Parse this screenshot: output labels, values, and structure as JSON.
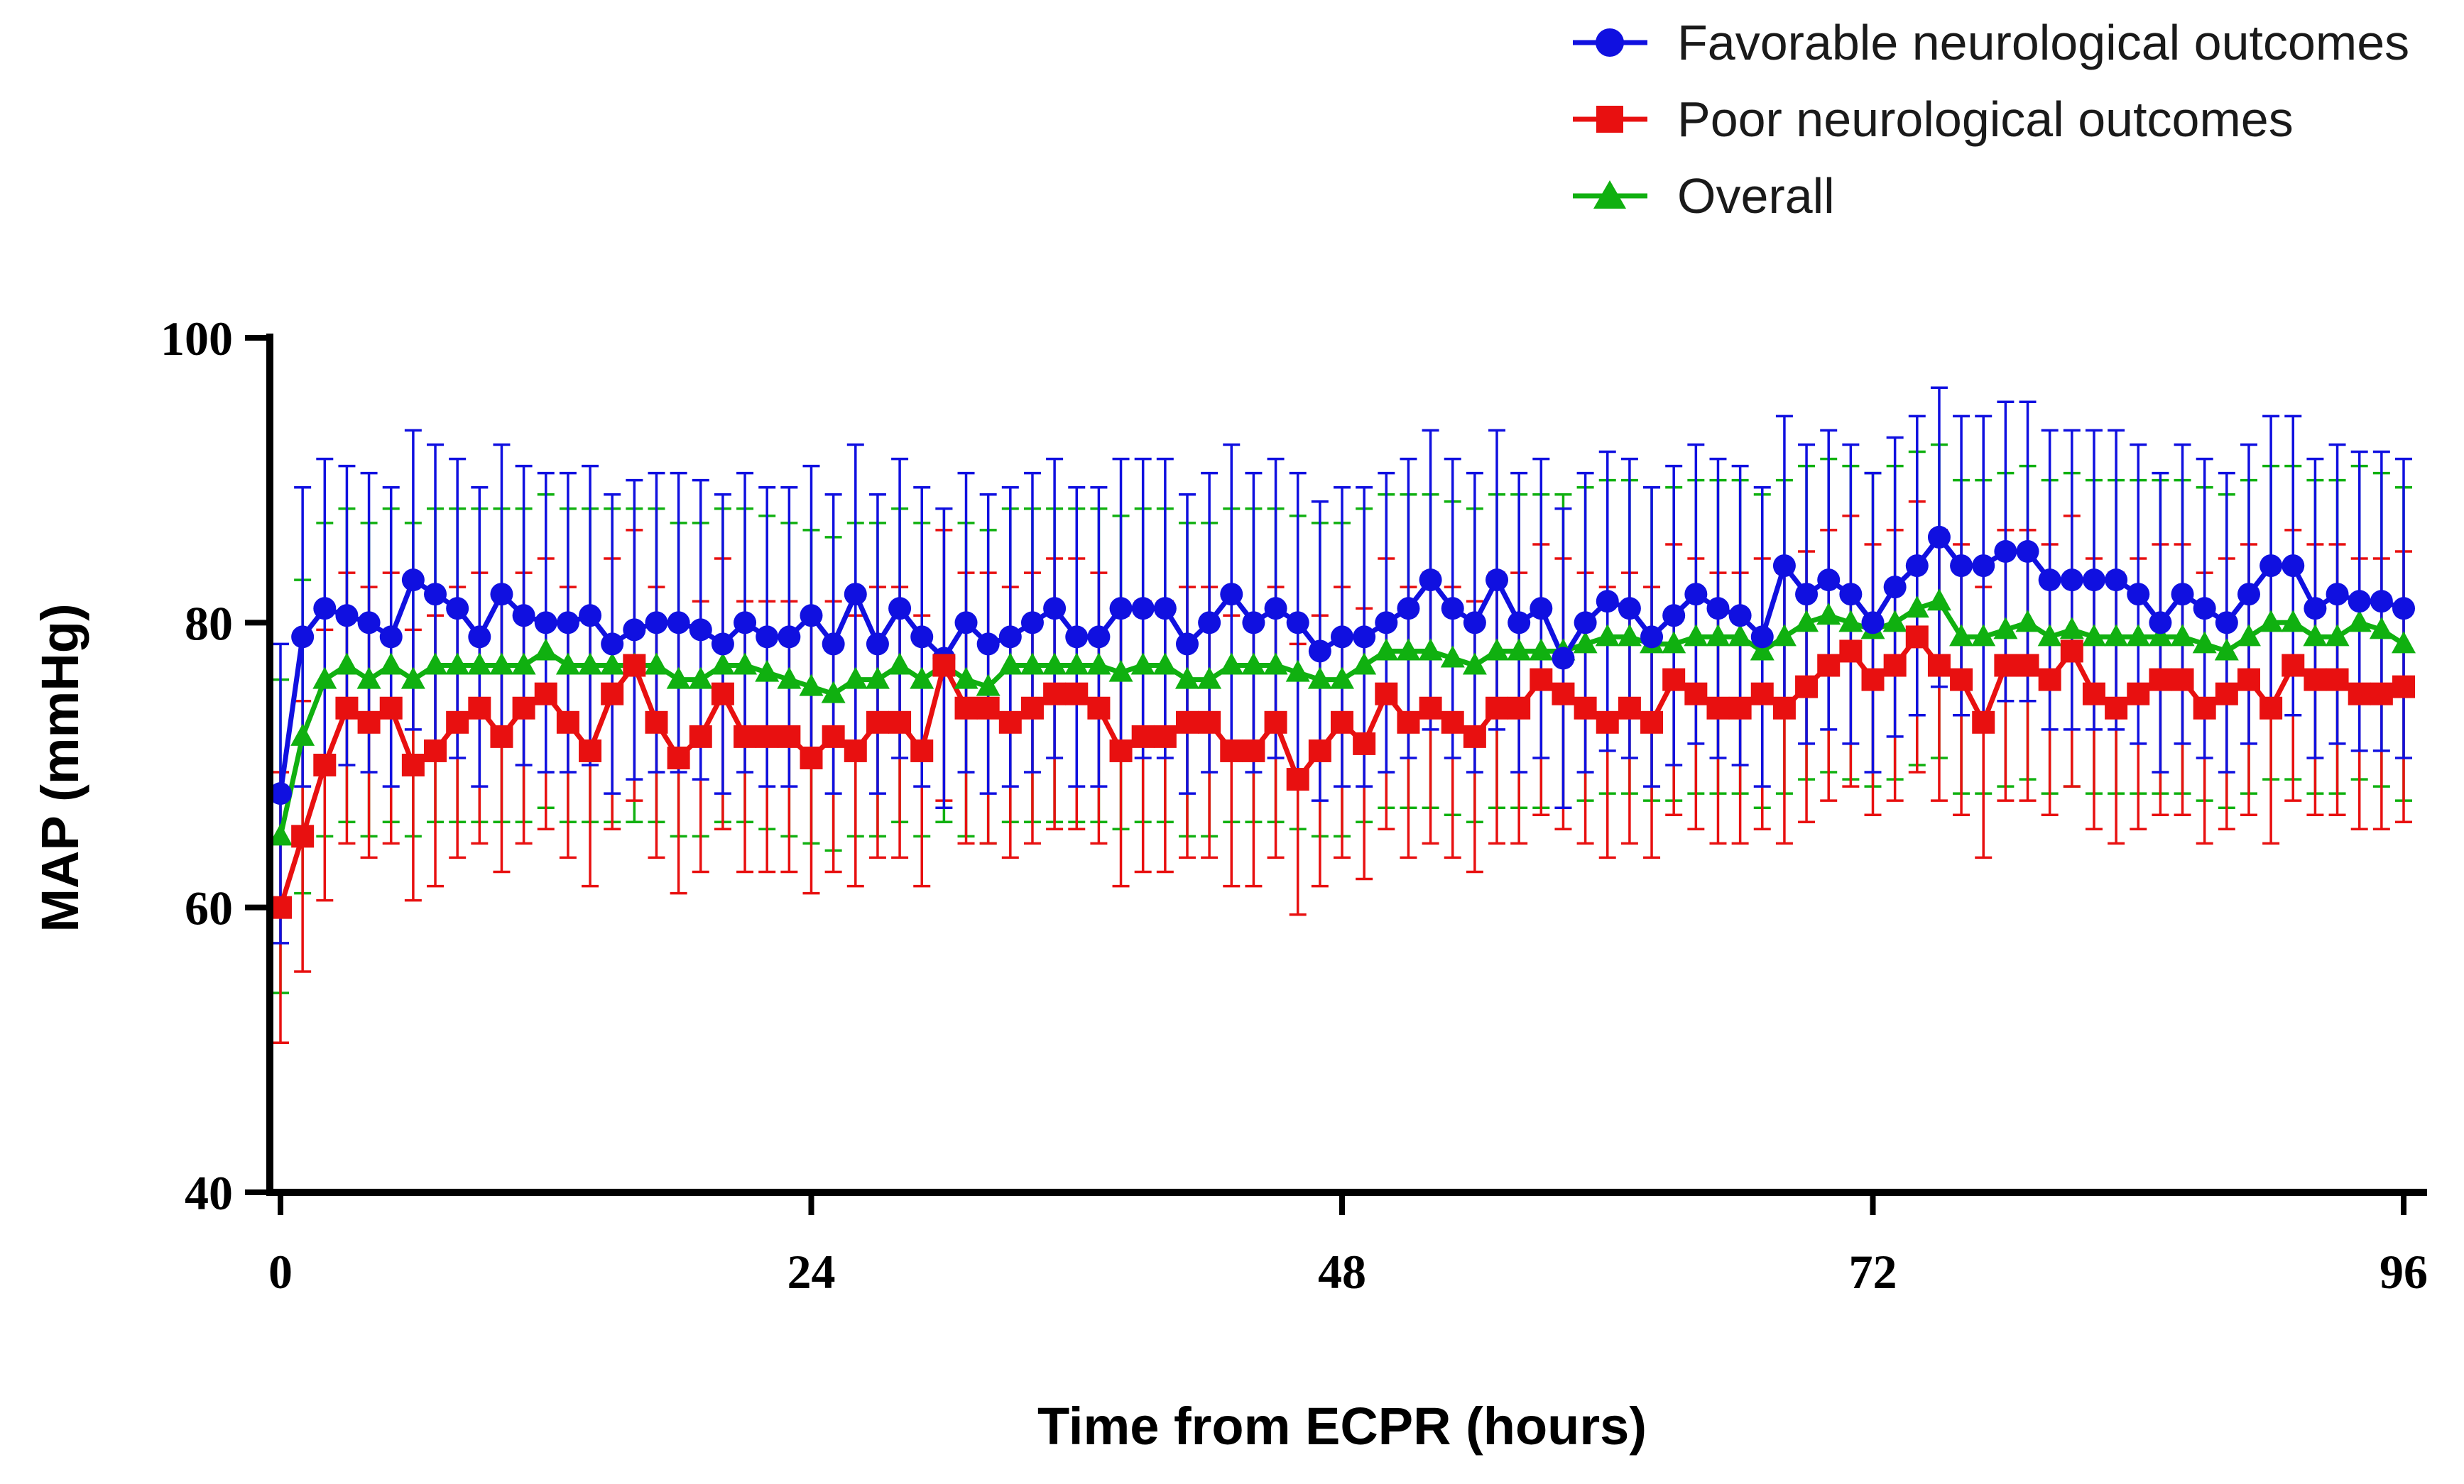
{
  "chart_data": {
    "type": "line",
    "title": "",
    "xlabel": "Time from ECPR (hours)",
    "ylabel": "MAP (mmHg)",
    "xlim": [
      0,
      96
    ],
    "ylim": [
      40,
      100
    ],
    "xticks": [
      0,
      24,
      48,
      72,
      96
    ],
    "yticks": [
      40,
      60,
      80,
      100
    ],
    "xtick_labels": [
      "0",
      "24",
      "48",
      "72",
      "96"
    ],
    "ytick_labels": [
      "40",
      "60",
      "80",
      "100"
    ],
    "legend_position": "top-right",
    "series": [
      {
        "name": "Favorable neurological outcomes",
        "color": "#1010e0",
        "marker": "circle",
        "error_sd": 10.5,
        "x": [
          0,
          1,
          2,
          3,
          4,
          5,
          6,
          7,
          8,
          9,
          10,
          11,
          12,
          13,
          14,
          15,
          16,
          17,
          18,
          19,
          20,
          21,
          22,
          23,
          24,
          25,
          26,
          27,
          28,
          29,
          30,
          31,
          32,
          33,
          34,
          35,
          36,
          37,
          38,
          39,
          40,
          41,
          42,
          43,
          44,
          45,
          46,
          47,
          48,
          49,
          50,
          51,
          52,
          53,
          54,
          55,
          56,
          57,
          58,
          59,
          60,
          61,
          62,
          63,
          64,
          65,
          66,
          67,
          68,
          69,
          70,
          71,
          72,
          73,
          74,
          75,
          76,
          77,
          78,
          79,
          80,
          81,
          82,
          83,
          84,
          85,
          86,
          87,
          88,
          89,
          90,
          91,
          92,
          93,
          94,
          95,
          96
        ],
        "values": [
          68.0,
          79.0,
          81.0,
          80.5,
          80.0,
          79.0,
          83.0,
          82.0,
          81.0,
          79.0,
          82.0,
          80.5,
          80.0,
          80.0,
          80.5,
          78.5,
          79.5,
          80.0,
          80.0,
          79.5,
          78.5,
          80.0,
          79.0,
          79.0,
          80.5,
          78.5,
          82.0,
          78.5,
          81.0,
          79.0,
          77.5,
          80.0,
          78.5,
          79.0,
          80.0,
          81.0,
          79.0,
          79.0,
          81.0,
          81.0,
          81.0,
          78.5,
          80.0,
          82.0,
          80.0,
          81.0,
          80.0,
          78.0,
          79.0,
          79.0,
          80.0,
          81.0,
          83.0,
          81.0,
          80.0,
          83.0,
          80.0,
          81.0,
          77.5,
          80.0,
          81.5,
          81.0,
          79.0,
          80.5,
          82.0,
          81.0,
          80.5,
          79.0,
          84.0,
          82.0,
          83.0,
          82.0,
          80.0,
          82.5,
          84.0,
          86.0,
          84.0,
          84.0,
          85.0,
          85.0,
          83.0,
          83.0,
          83.0,
          83.0,
          82.0,
          80.0,
          82.0,
          81.0,
          80.0,
          82.0,
          84.0,
          84.0,
          81.0,
          82.0,
          81.5,
          81.5,
          81.0
        ]
      },
      {
        "name": "Poor neurological outcomes",
        "color": "#e81010",
        "marker": "square",
        "error_sd": 9.5,
        "x": [
          0,
          1,
          2,
          3,
          4,
          5,
          6,
          7,
          8,
          9,
          10,
          11,
          12,
          13,
          14,
          15,
          16,
          17,
          18,
          19,
          20,
          21,
          22,
          23,
          24,
          25,
          26,
          27,
          28,
          29,
          30,
          31,
          32,
          33,
          34,
          35,
          36,
          37,
          38,
          39,
          40,
          41,
          42,
          43,
          44,
          45,
          46,
          47,
          48,
          49,
          50,
          51,
          52,
          53,
          54,
          55,
          56,
          57,
          58,
          59,
          60,
          61,
          62,
          63,
          64,
          65,
          66,
          67,
          68,
          69,
          70,
          71,
          72,
          73,
          74,
          75,
          76,
          77,
          78,
          79,
          80,
          81,
          82,
          83,
          84,
          85,
          86,
          87,
          88,
          89,
          90,
          91,
          92,
          93,
          94,
          95,
          96
        ],
        "values": [
          60.0,
          65.0,
          70.0,
          74.0,
          73.0,
          74.0,
          70.0,
          71.0,
          73.0,
          74.0,
          72.0,
          74.0,
          75.0,
          73.0,
          71.0,
          75.0,
          77.0,
          73.0,
          70.5,
          72.0,
          75.0,
          72.0,
          72.0,
          72.0,
          70.5,
          72.0,
          71.0,
          73.0,
          73.0,
          71.0,
          77.0,
          74.0,
          74.0,
          73.0,
          74.0,
          75.0,
          75.0,
          74.0,
          71.0,
          72.0,
          72.0,
          73.0,
          73.0,
          71.0,
          71.0,
          73.0,
          69.0,
          71.0,
          73.0,
          71.5,
          75.0,
          73.0,
          74.0,
          73.0,
          72.0,
          74.0,
          74.0,
          76.0,
          75.0,
          74.0,
          73.0,
          74.0,
          73.0,
          76.0,
          75.0,
          74.0,
          74.0,
          75.0,
          74.0,
          75.5,
          77.0,
          78.0,
          76.0,
          77.0,
          79.0,
          77.0,
          76.0,
          73.0,
          77.0,
          77.0,
          76.0,
          78.0,
          75.0,
          74.0,
          75.0,
          76.0,
          76.0,
          74.0,
          75.0,
          76.0,
          74.0,
          77.0,
          76.0,
          76.0,
          75.0,
          75.0,
          75.5
        ]
      },
      {
        "name": "Overall",
        "color": "#10b010",
        "marker": "triangle",
        "error_sd": 11.0,
        "x": [
          0,
          1,
          2,
          3,
          4,
          5,
          6,
          7,
          8,
          9,
          10,
          11,
          12,
          13,
          14,
          15,
          16,
          17,
          18,
          19,
          20,
          21,
          22,
          23,
          24,
          25,
          26,
          27,
          28,
          29,
          30,
          31,
          32,
          33,
          34,
          35,
          36,
          37,
          38,
          39,
          40,
          41,
          42,
          43,
          44,
          45,
          46,
          47,
          48,
          49,
          50,
          51,
          52,
          53,
          54,
          55,
          56,
          57,
          58,
          59,
          60,
          61,
          62,
          63,
          64,
          65,
          66,
          67,
          68,
          69,
          70,
          71,
          72,
          73,
          74,
          75,
          76,
          77,
          78,
          79,
          80,
          81,
          82,
          83,
          84,
          85,
          86,
          87,
          88,
          89,
          90,
          91,
          92,
          93,
          94,
          95,
          96
        ],
        "values": [
          65.0,
          72.0,
          76.0,
          77.0,
          76.0,
          77.0,
          76.0,
          77.0,
          77.0,
          77.0,
          77.0,
          77.0,
          78.0,
          77.0,
          77.0,
          77.0,
          77.0,
          77.0,
          76.0,
          76.0,
          77.0,
          77.0,
          76.5,
          76.0,
          75.5,
          75.0,
          76.0,
          76.0,
          77.0,
          76.0,
          77.0,
          76.0,
          75.5,
          77.0,
          77.0,
          77.0,
          77.0,
          77.0,
          76.5,
          77.0,
          77.0,
          76.0,
          76.0,
          77.0,
          77.0,
          77.0,
          76.5,
          76.0,
          76.0,
          77.0,
          78.0,
          78.0,
          78.0,
          77.5,
          77.0,
          78.0,
          78.0,
          78.0,
          78.0,
          78.5,
          79.0,
          79.0,
          78.5,
          78.5,
          79.0,
          79.0,
          79.0,
          78.0,
          79.0,
          80.0,
          80.5,
          80.0,
          79.5,
          80.0,
          81.0,
          81.5,
          79.0,
          79.0,
          79.5,
          80.0,
          79.0,
          79.5,
          79.0,
          79.0,
          79.0,
          79.0,
          79.0,
          78.5,
          78.0,
          79.0,
          80.0,
          80.0,
          79.0,
          79.0,
          80.0,
          79.5,
          78.5
        ]
      }
    ]
  }
}
